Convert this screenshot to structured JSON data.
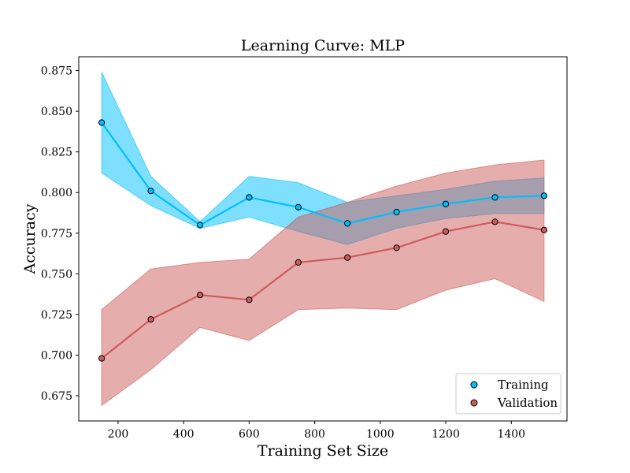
{
  "chart_data": {
    "type": "line",
    "title": "Learning Curve: MLP",
    "xlabel": "Training Set Size",
    "ylabel": "Accuracy",
    "xlim": [
      80,
      1570
    ],
    "ylim": [
      0.6595,
      0.8835
    ],
    "xticks": [
      200,
      400,
      600,
      800,
      1000,
      1200,
      1400
    ],
    "yticks": [
      0.675,
      0.7,
      0.725,
      0.75,
      0.775,
      0.8,
      0.825,
      0.85,
      0.875
    ],
    "grid": false,
    "legend_position": "bottom-right",
    "x": [
      150,
      300,
      450,
      600,
      750,
      900,
      1050,
      1200,
      1350,
      1500
    ],
    "series": [
      {
        "name": "Training",
        "color": "#00bfff",
        "edge_color": "#000000",
        "values": [
          0.843,
          0.801,
          0.78,
          0.797,
          0.791,
          0.781,
          0.788,
          0.793,
          0.797,
          0.798
        ],
        "upper": [
          0.874,
          0.81,
          0.782,
          0.81,
          0.806,
          0.794,
          0.798,
          0.802,
          0.807,
          0.809
        ],
        "lower": [
          0.812,
          0.792,
          0.778,
          0.785,
          0.776,
          0.768,
          0.778,
          0.784,
          0.787,
          0.787
        ]
      },
      {
        "name": "Validation",
        "color": "#cd5c5c",
        "edge_color": "#000000",
        "values": [
          0.698,
          0.722,
          0.737,
          0.734,
          0.757,
          0.76,
          0.766,
          0.776,
          0.782,
          0.777
        ],
        "upper": [
          0.728,
          0.753,
          0.757,
          0.759,
          0.785,
          0.794,
          0.804,
          0.812,
          0.817,
          0.82
        ],
        "lower": [
          0.669,
          0.691,
          0.717,
          0.709,
          0.728,
          0.729,
          0.728,
          0.74,
          0.747,
          0.733
        ]
      }
    ]
  }
}
